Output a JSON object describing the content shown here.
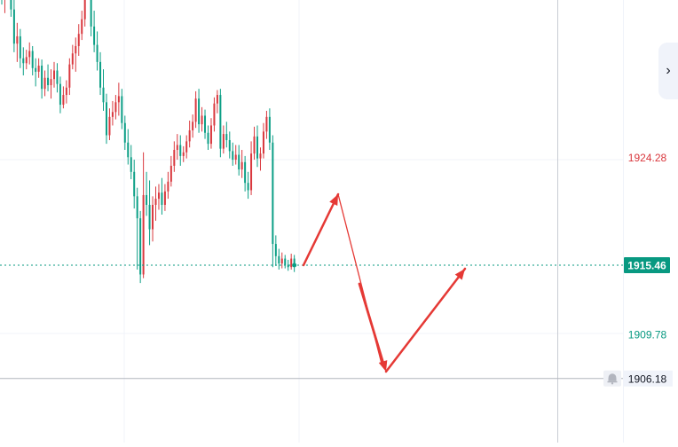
{
  "chart_data": {
    "type": "candlestick",
    "y_unit": "price",
    "price_levels": [
      {
        "value": "1924.28",
        "kind": "label",
        "color": "#d9383e"
      },
      {
        "value": "1915.46",
        "kind": "current_price",
        "color": "#089981"
      },
      {
        "value": "1909.78",
        "kind": "label",
        "color": "#089981"
      },
      {
        "value": "1906.18",
        "kind": "alert_line",
        "color": "#131722"
      }
    ],
    "up_color": "#d9383e",
    "down_color": "#0c9f86",
    "candles_note_omitted": false,
    "candles": [
      [
        1938.4,
        1938.9,
        1936.8,
        1937.3
      ],
      [
        1937.3,
        1938.6,
        1936.1,
        1937.8
      ],
      [
        1937.8,
        1940.5,
        1937.2,
        1938.9
      ],
      [
        1938.9,
        1939.9,
        1935.8,
        1936.4
      ],
      [
        1936.4,
        1937.9,
        1932.9,
        1933.6
      ],
      [
        1933.6,
        1935.3,
        1932.1,
        1934.2
      ],
      [
        1934.2,
        1934.8,
        1931.6,
        1932.4
      ],
      [
        1932.4,
        1933.3,
        1931.0,
        1932.0
      ],
      [
        1932.0,
        1933.1,
        1931.5,
        1932.5
      ],
      [
        1932.5,
        1933.7,
        1931.9,
        1933.0
      ],
      [
        1933.0,
        1933.4,
        1931.0,
        1931.6
      ],
      [
        1931.6,
        1932.4,
        1930.1,
        1931.3
      ],
      [
        1931.3,
        1932.4,
        1930.8,
        1931.8
      ],
      [
        1931.8,
        1932.3,
        1929.1,
        1929.9
      ],
      [
        1929.9,
        1931.4,
        1929.3,
        1930.8
      ],
      [
        1930.8,
        1931.9,
        1929.7,
        1930.2
      ],
      [
        1930.2,
        1931.5,
        1929.1,
        1930.7
      ],
      [
        1930.7,
        1932.1,
        1930.0,
        1931.4
      ],
      [
        1931.4,
        1932.0,
        1929.6,
        1930.3
      ],
      [
        1930.3,
        1930.9,
        1927.9,
        1928.6
      ],
      [
        1928.6,
        1930.1,
        1928.3,
        1929.4
      ],
      [
        1929.4,
        1930.6,
        1928.7,
        1930.0
      ],
      [
        1930.0,
        1932.4,
        1929.4,
        1931.9
      ],
      [
        1931.9,
        1933.5,
        1931.5,
        1932.8
      ],
      [
        1932.8,
        1934.1,
        1931.3,
        1933.4
      ],
      [
        1933.4,
        1935.2,
        1932.6,
        1934.4
      ],
      [
        1934.4,
        1936.3,
        1933.9,
        1935.6
      ],
      [
        1935.6,
        1939.5,
        1935.0,
        1938.9
      ],
      [
        1938.9,
        1941.3,
        1938.1,
        1940.5
      ],
      [
        1940.5,
        1941.4,
        1934.2,
        1935.0
      ],
      [
        1935.0,
        1936.3,
        1932.9,
        1933.5
      ],
      [
        1933.5,
        1934.6,
        1931.4,
        1932.1
      ],
      [
        1932.1,
        1932.9,
        1929.4,
        1930.0
      ],
      [
        1930.0,
        1931.5,
        1928.1,
        1928.8
      ],
      [
        1928.8,
        1929.5,
        1925.4,
        1926.1
      ],
      [
        1926.1,
        1928.3,
        1925.7,
        1927.6
      ],
      [
        1927.6,
        1928.9,
        1926.9,
        1928.0
      ],
      [
        1928.0,
        1929.4,
        1927.4,
        1928.8
      ],
      [
        1928.8,
        1930.4,
        1927.7,
        1929.3
      ],
      [
        1929.3,
        1929.9,
        1926.6,
        1927.1
      ],
      [
        1927.1,
        1927.7,
        1924.9,
        1925.5
      ],
      [
        1925.5,
        1926.6,
        1923.7,
        1924.3
      ],
      [
        1924.3,
        1925.3,
        1922.5,
        1923.1
      ],
      [
        1923.1,
        1924.1,
        1920.1,
        1921.1
      ],
      [
        1921.1,
        1921.8,
        1915.1,
        1919.3
      ],
      [
        1919.3,
        1919.9,
        1914.0,
        1914.7
      ],
      [
        1914.7,
        1924.7,
        1914.4,
        1921.2
      ],
      [
        1921.2,
        1923.1,
        1919.5,
        1920.4
      ],
      [
        1920.4,
        1922.4,
        1917.1,
        1918.4
      ],
      [
        1918.4,
        1921.1,
        1917.4,
        1920.4
      ],
      [
        1920.4,
        1921.9,
        1919.1,
        1920.9
      ],
      [
        1920.9,
        1922.1,
        1920.0,
        1921.4
      ],
      [
        1921.4,
        1922.6,
        1919.6,
        1920.4
      ],
      [
        1920.4,
        1922.1,
        1919.9,
        1921.5
      ],
      [
        1921.5,
        1923.1,
        1920.9,
        1922.3
      ],
      [
        1922.3,
        1924.4,
        1921.9,
        1923.6
      ],
      [
        1923.6,
        1925.6,
        1923.1,
        1924.9
      ],
      [
        1924.9,
        1926.2,
        1924.1,
        1925.3
      ],
      [
        1925.3,
        1926.1,
        1923.6,
        1924.4
      ],
      [
        1924.4,
        1925.2,
        1923.9,
        1924.7
      ],
      [
        1924.7,
        1926.1,
        1924.2,
        1925.6
      ],
      [
        1925.6,
        1927.3,
        1925.1,
        1926.5
      ],
      [
        1926.5,
        1927.8,
        1925.9,
        1927.2
      ],
      [
        1927.2,
        1929.7,
        1926.7,
        1929.1
      ],
      [
        1929.1,
        1929.9,
        1926.3,
        1927.0
      ],
      [
        1927.0,
        1928.4,
        1926.4,
        1927.7
      ],
      [
        1927.7,
        1928.2,
        1925.8,
        1926.3
      ],
      [
        1926.3,
        1926.9,
        1924.9,
        1925.4
      ],
      [
        1925.4,
        1927.5,
        1925.0,
        1926.9
      ],
      [
        1926.9,
        1929.2,
        1926.4,
        1928.7
      ],
      [
        1928.7,
        1929.8,
        1927.9,
        1929.4
      ],
      [
        1929.4,
        1929.9,
        1924.3,
        1925.0
      ],
      [
        1925.0,
        1926.9,
        1924.6,
        1926.2
      ],
      [
        1926.2,
        1927.2,
        1925.1,
        1925.7
      ],
      [
        1925.7,
        1926.4,
        1924.2,
        1924.8
      ],
      [
        1924.8,
        1925.5,
        1923.6,
        1924.1
      ],
      [
        1924.1,
        1925.3,
        1923.7,
        1924.5
      ],
      [
        1924.5,
        1925.3,
        1922.8,
        1923.3
      ],
      [
        1923.3,
        1924.9,
        1922.6,
        1923.9
      ],
      [
        1923.9,
        1924.4,
        1921.5,
        1922.2
      ],
      [
        1922.2,
        1923.1,
        1920.9,
        1921.6
      ],
      [
        1921.6,
        1925.6,
        1921.2,
        1924.6
      ],
      [
        1924.6,
        1926.8,
        1924.1,
        1926.0
      ],
      [
        1926.0,
        1926.9,
        1923.5,
        1924.2
      ],
      [
        1924.2,
        1925.1,
        1923.2,
        1924.6
      ],
      [
        1924.6,
        1927.1,
        1924.2,
        1926.4
      ],
      [
        1926.4,
        1928.1,
        1925.8,
        1927.6
      ],
      [
        1927.6,
        1928.3,
        1924.9,
        1925.5
      ],
      [
        1925.5,
        1926.1,
        1915.3,
        1917.2
      ],
      [
        1917.2,
        1917.9,
        1915.4,
        1916.2
      ],
      [
        1916.2,
        1916.8,
        1915.1,
        1915.6
      ],
      [
        1915.6,
        1916.5,
        1915.2,
        1916.0
      ],
      [
        1916.0,
        1916.3,
        1915.2,
        1915.5
      ],
      [
        1915.5,
        1915.9,
        1915.0,
        1915.3
      ],
      [
        1915.3,
        1916.4,
        1915.1,
        1916.0
      ],
      [
        1916.0,
        1916.3,
        1914.9,
        1915.46
      ]
    ]
  },
  "ui": {
    "panel_toggle_icon": "chevron-right-icon",
    "alert_icon": "bell-icon",
    "arrow_color": "#e53935"
  }
}
